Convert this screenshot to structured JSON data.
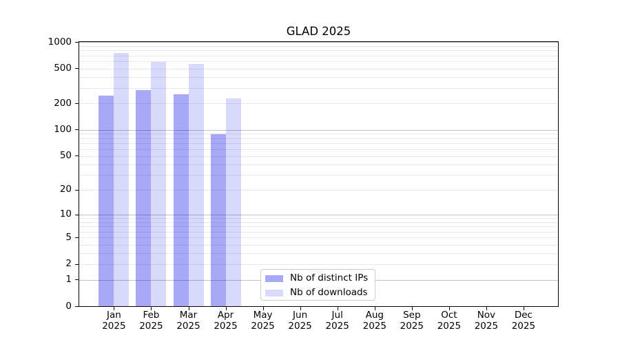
{
  "chart_data": {
    "type": "bar",
    "title": "GLAD 2025",
    "categories": [
      "Jan",
      "Feb",
      "Mar",
      "Apr",
      "May",
      "Jun",
      "Jul",
      "Aug",
      "Sep",
      "Oct",
      "Nov",
      "Dec"
    ],
    "category_year": "2025",
    "series": [
      {
        "name": "Nb of distinct IPs",
        "color": "rgba(0,0,235,0.34)",
        "values": [
          245,
          283,
          255,
          89,
          0,
          0,
          0,
          0,
          0,
          0,
          0,
          0
        ]
      },
      {
        "name": "Nb of downloads",
        "color": "rgba(0,0,235,0.15)",
        "values": [
          750,
          595,
          560,
          228,
          0,
          0,
          0,
          0,
          0,
          0,
          0,
          0
        ]
      }
    ],
    "yscale": "log10(1+x)",
    "ylim": [
      0,
      1000
    ],
    "yticks": [
      0,
      1,
      2,
      5,
      10,
      20,
      50,
      100,
      200,
      500,
      1000
    ],
    "grid": "horizontal",
    "legend_position": "lower center"
  }
}
